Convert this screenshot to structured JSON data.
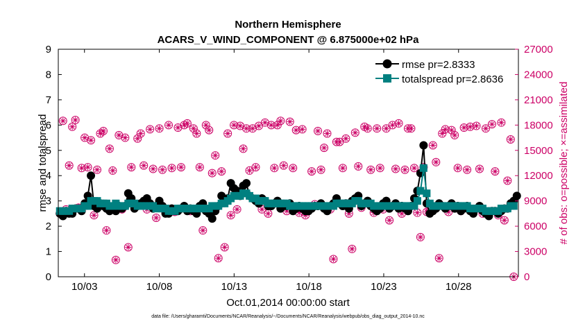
{
  "chart_data": {
    "type": "line",
    "title": "Northern Hemisphere",
    "subtitle": "ACARS_V_WIND_COMPONENT @ 6.875000e+02 hPa",
    "xlabel": "Oct.01,2014 00:00:00 start",
    "ylabel": "rmse and totalspread",
    "ylabel_right": "# of obs: o=possible; ×=assimilated",
    "footnote": "data file: /Users/gharamti/Documents/NCAR/Reanalysis/~/Documents/NCAR/Reanalysis/webpub/obs_diag_output_2014-10.nc",
    "x_tick_labels": [
      "10/03",
      "10/08",
      "10/13",
      "10/18",
      "10/23",
      "10/28"
    ],
    "x_tick_positions_days": [
      2,
      7,
      12,
      17,
      22,
      27
    ],
    "x_range_days": [
      0.25,
      31.0
    ],
    "ylim": [
      0,
      9
    ],
    "y_ticks": [
      0,
      1,
      2,
      3,
      4,
      5,
      6,
      7,
      8,
      9
    ],
    "ylim_right": [
      0,
      27000
    ],
    "y_ticks_right": [
      0,
      3000,
      6000,
      9000,
      12000,
      15000,
      18000,
      21000,
      24000,
      27000
    ],
    "colors": {
      "rmse": "#000000",
      "totalspread": "#008080",
      "obs": "#cc0066",
      "axis": "#000000",
      "right_axis": "#cc0066"
    },
    "series": [
      {
        "name": "rmse pr=2.8333",
        "marker": "circle",
        "values": [
          2.5,
          2.4,
          2.6,
          2.5,
          2.5,
          2.7,
          2.7,
          2.6,
          2.9,
          3.2,
          4.0,
          2.8,
          2.7,
          2.9,
          2.8,
          2.7,
          2.6,
          2.7,
          2.6,
          2.8,
          2.7,
          2.8,
          3.3,
          3.1,
          2.7,
          2.8,
          2.9,
          3.0,
          3.1,
          2.9,
          2.7,
          2.8,
          3.0,
          2.8,
          2.5,
          2.5,
          2.7,
          2.6,
          2.6,
          2.7,
          2.8,
          2.6,
          2.7,
          2.6,
          2.5,
          2.8,
          2.9,
          2.6,
          2.5,
          2.3,
          2.6,
          2.8,
          3.2,
          3.0,
          3.1,
          3.7,
          3.5,
          3.4,
          3.2,
          3.6,
          3.7,
          3.2,
          3.1,
          3.0,
          2.9,
          3.1,
          3.0,
          2.8,
          2.8,
          2.9,
          3.0,
          2.7,
          2.8,
          2.8,
          2.9,
          2.6,
          2.7,
          2.8,
          2.7,
          2.6,
          2.6,
          2.7,
          2.8,
          2.8,
          2.9,
          2.7,
          2.6,
          2.8,
          2.9,
          3.1,
          2.9,
          2.8,
          2.9,
          2.7,
          3.0,
          3.1,
          3.2,
          2.8,
          2.9,
          3.0,
          2.8,
          2.7,
          2.6,
          2.7,
          2.9,
          3.0,
          2.7,
          2.8,
          2.9,
          2.7,
          2.8,
          2.7,
          2.6,
          2.8,
          3.1,
          3.4,
          4.1,
          5.2,
          2.9,
          2.5,
          2.6,
          2.7,
          2.9,
          2.8,
          2.7,
          2.8,
          2.9,
          2.7,
          2.8,
          2.6,
          2.7,
          2.8,
          2.6,
          2.5,
          2.7,
          2.8,
          2.6,
          2.5,
          2.4,
          2.6,
          2.6,
          2.5,
          2.6,
          2.7,
          2.7,
          2.9,
          3.0,
          3.2
        ]
      },
      {
        "name": "totalspread pr=2.8636",
        "marker": "square",
        "values": [
          2.6,
          2.6,
          2.6,
          2.6,
          2.7,
          2.7,
          2.7,
          2.7,
          2.8,
          2.8,
          3.0,
          3.0,
          3.0,
          2.9,
          2.9,
          2.9,
          2.8,
          2.8,
          2.9,
          2.8,
          2.8,
          2.8,
          2.9,
          2.9,
          2.9,
          2.8,
          2.8,
          2.8,
          2.8,
          2.8,
          2.8,
          2.7,
          2.7,
          2.7,
          2.7,
          2.6,
          2.6,
          2.6,
          2.7,
          2.7,
          2.7,
          2.7,
          2.7,
          2.7,
          2.7,
          2.7,
          2.7,
          2.7,
          2.7,
          2.8,
          2.8,
          2.8,
          2.9,
          2.9,
          3.0,
          3.1,
          3.2,
          3.2,
          3.2,
          3.3,
          3.3,
          3.2,
          3.1,
          3.1,
          3.0,
          3.0,
          3.0,
          2.9,
          2.9,
          2.9,
          2.9,
          2.9,
          2.9,
          2.9,
          2.8,
          2.8,
          2.8,
          2.8,
          2.8,
          2.8,
          2.8,
          2.8,
          2.8,
          2.8,
          2.8,
          2.8,
          2.8,
          2.8,
          2.8,
          2.9,
          2.9,
          2.9,
          2.9,
          2.9,
          2.9,
          3.0,
          3.0,
          2.9,
          2.9,
          2.9,
          2.9,
          2.8,
          2.8,
          2.8,
          2.8,
          2.8,
          2.8,
          2.8,
          2.8,
          2.8,
          2.8,
          2.8,
          2.8,
          2.8,
          2.8,
          3.0,
          3.4,
          4.3,
          3.3,
          2.9,
          2.8,
          2.8,
          2.8,
          2.8,
          2.8,
          2.8,
          2.8,
          2.8,
          2.8,
          2.8,
          2.8,
          2.8,
          2.7,
          2.7,
          2.7,
          2.7,
          2.7,
          2.6,
          2.6,
          2.6,
          2.6,
          2.6,
          2.7,
          2.7,
          2.7,
          2.8,
          2.8
        ]
      },
      {
        "name": "obs_possible",
        "marker": "open-circle",
        "axis": "right",
        "values": [
          7500,
          18500,
          8000,
          13200,
          17800,
          18600,
          8200,
          12900,
          16500,
          13000,
          16200,
          7300,
          12700,
          17000,
          17300,
          5500,
          15200,
          12600,
          2000,
          16800,
          8000,
          16500,
          3500,
          13000,
          8500,
          16400,
          17000,
          13200,
          8000,
          17500,
          12800,
          7000,
          17600,
          12700,
          7600,
          18000,
          12900,
          7700,
          17700,
          13000,
          18000,
          18200,
          7800,
          17600,
          17000,
          13000,
          5500,
          18000,
          17400,
          12300,
          14400,
          2200,
          12500,
          3500,
          17000,
          7300,
          18000,
          8000,
          17900,
          15200,
          17600,
          12600,
          17600,
          13000,
          17900,
          8000,
          18300,
          7500,
          18000,
          12900,
          18000,
          18500,
          13200,
          7800,
          18400,
          12900,
          17400,
          7600,
          17500,
          7300,
          8000,
          12500,
          8600,
          17300,
          12700,
          15300,
          17000,
          8000,
          2100,
          16000,
          16000,
          12900,
          16400,
          7500,
          3300,
          17100,
          13100,
          8200,
          17800,
          17600,
          12700,
          7600,
          17600,
          12900,
          8000,
          17600,
          6700,
          18000,
          12800,
          18200,
          7500,
          12700,
          17600,
          17600,
          12900,
          7600,
          4700,
          13000,
          7700,
          8000,
          15600,
          13600,
          2200,
          17000,
          17500,
          7700,
          17400,
          16800,
          12900,
          7800,
          17700,
          12700,
          17800,
          8000,
          17900,
          12800,
          7500,
          17600,
          7600,
          18100,
          12500,
          7300,
          18300,
          6700,
          11400,
          16300,
          0
        ]
      }
    ],
    "legend": [
      "rmse pr=2.8333",
      "totalspread pr=2.8636"
    ],
    "legend_position": "top-right",
    "grid": false
  }
}
